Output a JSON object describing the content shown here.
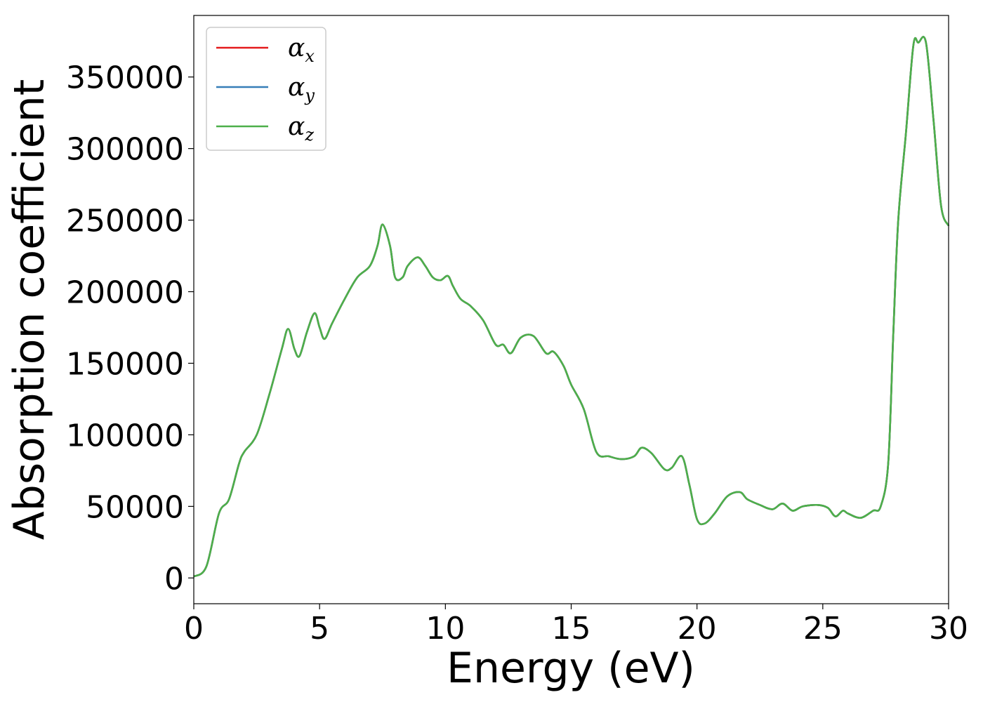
{
  "chart_data": {
    "type": "line",
    "xlabel": "Energy (eV)",
    "ylabel": "Absorption coefficient",
    "xlim": [
      0,
      30
    ],
    "ylim": [
      -18000,
      393000
    ],
    "xticks": [
      0,
      5,
      10,
      15,
      20,
      25,
      30
    ],
    "yticks": [
      0,
      50000,
      100000,
      150000,
      200000,
      250000,
      300000,
      350000
    ],
    "grid": false,
    "legend": {
      "position": "top-left"
    },
    "x": [
      0,
      0.5,
      1.0,
      1.4,
      1.8,
      2.0,
      2.5,
      3.0,
      3.5,
      3.75,
      4.0,
      4.2,
      4.5,
      4.8,
      5.0,
      5.2,
      5.5,
      6.0,
      6.5,
      7.0,
      7.3,
      7.5,
      7.8,
      8.0,
      8.3,
      8.5,
      8.9,
      9.2,
      9.5,
      9.8,
      10.1,
      10.3,
      10.6,
      11.0,
      11.5,
      12.0,
      12.3,
      12.6,
      13.0,
      13.5,
      14.0,
      14.3,
      14.7,
      15.0,
      15.5,
      16.0,
      16.5,
      17.0,
      17.5,
      17.8,
      18.2,
      18.7,
      19.0,
      19.4,
      19.7,
      20.0,
      20.3,
      20.7,
      21.2,
      21.7,
      22.0,
      22.5,
      23.0,
      23.4,
      23.8,
      24.2,
      24.8,
      25.2,
      25.5,
      25.8,
      26.0,
      26.5,
      27.0,
      27.3,
      27.6,
      27.8,
      28.0,
      28.3,
      28.6,
      28.8,
      29.1,
      29.4,
      29.7,
      30.0
    ],
    "series": [
      {
        "name": "α_x",
        "color": "#e41a1c",
        "values": [
          1000,
          8000,
          45000,
          55000,
          80000,
          88000,
          100000,
          128000,
          160000,
          174000,
          160000,
          155000,
          172000,
          185000,
          175000,
          167000,
          178000,
          195000,
          210000,
          218000,
          232000,
          247000,
          232000,
          210000,
          210000,
          218000,
          224000,
          218000,
          210000,
          208000,
          211000,
          204000,
          195000,
          190000,
          180000,
          163000,
          163000,
          157000,
          168000,
          169000,
          157000,
          158000,
          148000,
          135000,
          118000,
          88000,
          85000,
          83000,
          85000,
          91000,
          87000,
          76000,
          77000,
          85000,
          65000,
          41000,
          38000,
          45000,
          57000,
          60000,
          55000,
          51000,
          48000,
          52000,
          47000,
          50000,
          51000,
          49000,
          43000,
          47000,
          45000,
          42000,
          47000,
          50000,
          80000,
          170000,
          250000,
          310000,
          372000,
          374000,
          374000,
          320000,
          260000,
          246000
        ]
      },
      {
        "name": "α_y",
        "color": "#377eb8",
        "values": [
          1000,
          8000,
          45000,
          55000,
          80000,
          88000,
          100000,
          128000,
          160000,
          174000,
          160000,
          155000,
          172000,
          185000,
          175000,
          167000,
          178000,
          195000,
          210000,
          218000,
          232000,
          247000,
          232000,
          210000,
          210000,
          218000,
          224000,
          218000,
          210000,
          208000,
          211000,
          204000,
          195000,
          190000,
          180000,
          163000,
          163000,
          157000,
          168000,
          169000,
          157000,
          158000,
          148000,
          135000,
          118000,
          88000,
          85000,
          83000,
          85000,
          91000,
          87000,
          76000,
          77000,
          85000,
          65000,
          41000,
          38000,
          45000,
          57000,
          60000,
          55000,
          51000,
          48000,
          52000,
          47000,
          50000,
          51000,
          49000,
          43000,
          47000,
          45000,
          42000,
          47000,
          50000,
          80000,
          170000,
          250000,
          310000,
          372000,
          374000,
          374000,
          320000,
          260000,
          246000
        ]
      },
      {
        "name": "α_z",
        "color": "#4daf4a",
        "values": [
          1000,
          8000,
          45000,
          55000,
          80000,
          88000,
          100000,
          128000,
          160000,
          174000,
          160000,
          155000,
          172000,
          185000,
          175000,
          167000,
          178000,
          195000,
          210000,
          218000,
          232000,
          247000,
          232000,
          210000,
          210000,
          218000,
          224000,
          218000,
          210000,
          208000,
          211000,
          204000,
          195000,
          190000,
          180000,
          163000,
          163000,
          157000,
          168000,
          169000,
          157000,
          158000,
          148000,
          135000,
          118000,
          88000,
          85000,
          83000,
          85000,
          91000,
          87000,
          76000,
          77000,
          85000,
          65000,
          41000,
          38000,
          45000,
          57000,
          60000,
          55000,
          51000,
          48000,
          52000,
          47000,
          50000,
          51000,
          49000,
          43000,
          47000,
          45000,
          42000,
          47000,
          50000,
          80000,
          170000,
          250000,
          310000,
          372000,
          374000,
          374000,
          320000,
          260000,
          246000
        ]
      }
    ]
  }
}
